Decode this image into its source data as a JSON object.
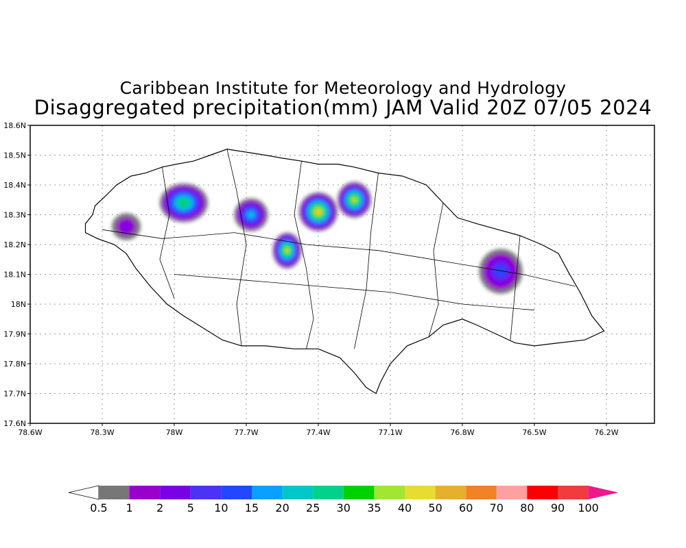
{
  "title_line1": "Caribbean Institute for Meteorology and Hydrology",
  "title_line2": "Disaggregated precipitation(mm) JAM Valid 20Z 07/05 2024",
  "map": {
    "lon_range": [
      -78.6,
      -76.0
    ],
    "lat_range": [
      17.6,
      18.6
    ],
    "lat_ticks": [
      {
        "value": 18.6,
        "label": "18.6N"
      },
      {
        "value": 18.5,
        "label": "18.5N"
      },
      {
        "value": 18.4,
        "label": "18.4N"
      },
      {
        "value": 18.3,
        "label": "18.3N"
      },
      {
        "value": 18.2,
        "label": "18.2N"
      },
      {
        "value": 18.1,
        "label": "18.1N"
      },
      {
        "value": 18.0,
        "label": "18N"
      },
      {
        "value": 17.9,
        "label": "17.9N"
      },
      {
        "value": 17.8,
        "label": "17.8N"
      },
      {
        "value": 17.7,
        "label": "17.7N"
      },
      {
        "value": 17.6,
        "label": "17.6N"
      }
    ],
    "lon_ticks": [
      {
        "value": -78.6,
        "label": "78.6W"
      },
      {
        "value": -78.3,
        "label": "78.3W"
      },
      {
        "value": -78.0,
        "label": "78W"
      },
      {
        "value": -77.7,
        "label": "77.7W"
      },
      {
        "value": -77.4,
        "label": "77.4W"
      },
      {
        "value": -77.1,
        "label": "77.1W"
      },
      {
        "value": -76.8,
        "label": "76.8W"
      },
      {
        "value": -76.5,
        "label": "76.5W"
      },
      {
        "value": -76.2,
        "label": "76.2W"
      }
    ],
    "grid": true,
    "island_outline_lonlat": [
      [
        -78.37,
        18.27
      ],
      [
        -78.34,
        18.3
      ],
      [
        -78.33,
        18.33
      ],
      [
        -78.29,
        18.36
      ],
      [
        -78.24,
        18.4
      ],
      [
        -78.18,
        18.43
      ],
      [
        -78.12,
        18.44
      ],
      [
        -78.05,
        18.46
      ],
      [
        -77.99,
        18.47
      ],
      [
        -77.92,
        18.48
      ],
      [
        -77.85,
        18.5
      ],
      [
        -77.78,
        18.52
      ],
      [
        -77.7,
        18.51
      ],
      [
        -77.62,
        18.5
      ],
      [
        -77.55,
        18.49
      ],
      [
        -77.47,
        18.48
      ],
      [
        -77.4,
        18.47
      ],
      [
        -77.32,
        18.47
      ],
      [
        -77.25,
        18.46
      ],
      [
        -77.15,
        18.44
      ],
      [
        -77.05,
        18.43
      ],
      [
        -76.95,
        18.4
      ],
      [
        -76.88,
        18.34
      ],
      [
        -76.82,
        18.29
      ],
      [
        -76.74,
        18.27
      ],
      [
        -76.65,
        18.25
      ],
      [
        -76.56,
        18.23
      ],
      [
        -76.47,
        18.2
      ],
      [
        -76.4,
        18.17
      ],
      [
        -76.36,
        18.11
      ],
      [
        -76.31,
        18.04
      ],
      [
        -76.26,
        17.96
      ],
      [
        -76.21,
        17.91
      ],
      [
        -76.29,
        17.88
      ],
      [
        -76.4,
        17.87
      ],
      [
        -76.5,
        17.86
      ],
      [
        -76.58,
        17.87
      ],
      [
        -76.66,
        17.9
      ],
      [
        -76.74,
        17.93
      ],
      [
        -76.8,
        17.95
      ],
      [
        -76.88,
        17.93
      ],
      [
        -76.94,
        17.89
      ],
      [
        -77.03,
        17.86
      ],
      [
        -77.1,
        17.8
      ],
      [
        -77.14,
        17.74
      ],
      [
        -77.16,
        17.7
      ],
      [
        -77.2,
        17.72
      ],
      [
        -77.25,
        17.77
      ],
      [
        -77.31,
        17.82
      ],
      [
        -77.4,
        17.85
      ],
      [
        -77.5,
        17.85
      ],
      [
        -77.62,
        17.86
      ],
      [
        -77.72,
        17.86
      ],
      [
        -77.8,
        17.88
      ],
      [
        -77.88,
        17.92
      ],
      [
        -77.96,
        17.96
      ],
      [
        -78.03,
        18.0
      ],
      [
        -78.1,
        18.06
      ],
      [
        -78.16,
        18.12
      ],
      [
        -78.2,
        18.17
      ],
      [
        -78.25,
        18.2
      ],
      [
        -78.32,
        18.22
      ],
      [
        -78.37,
        18.24
      ]
    ],
    "rain_cells": [
      {
        "lon": -77.96,
        "lat": 18.34,
        "rx": 0.1,
        "ry": 0.065,
        "level": 8
      },
      {
        "lon": -77.4,
        "lat": 18.31,
        "rx": 0.08,
        "ry": 0.065,
        "level": 11
      },
      {
        "lon": -77.25,
        "lat": 18.35,
        "rx": 0.07,
        "ry": 0.06,
        "level": 10
      },
      {
        "lon": -77.53,
        "lat": 18.18,
        "rx": 0.06,
        "ry": 0.06,
        "level": 10
      },
      {
        "lon": -77.68,
        "lat": 18.3,
        "rx": 0.07,
        "ry": 0.055,
        "level": 6
      },
      {
        "lon": -78.2,
        "lat": 18.26,
        "rx": 0.06,
        "ry": 0.045,
        "level": 2
      },
      {
        "lon": -76.64,
        "lat": 18.11,
        "rx": 0.09,
        "ry": 0.075,
        "level": 4
      }
    ]
  },
  "colorbar": {
    "colors": [
      "#777777",
      "#9900cc",
      "#7a00e6",
      "#4b32f5",
      "#2346ff",
      "#0aa0ff",
      "#00c8c8",
      "#00d28c",
      "#00d200",
      "#a0e632",
      "#e6dc32",
      "#e6af2d",
      "#f08228",
      "#ffa0a0",
      "#fa0000",
      "#f03c3c"
    ],
    "labels": [
      "0.5",
      "1",
      "2",
      "5",
      "10",
      "15",
      "20",
      "25",
      "30",
      "35",
      "40",
      "50",
      "60",
      "70",
      "80",
      "90",
      "100"
    ],
    "max_color": "#f0198c"
  }
}
